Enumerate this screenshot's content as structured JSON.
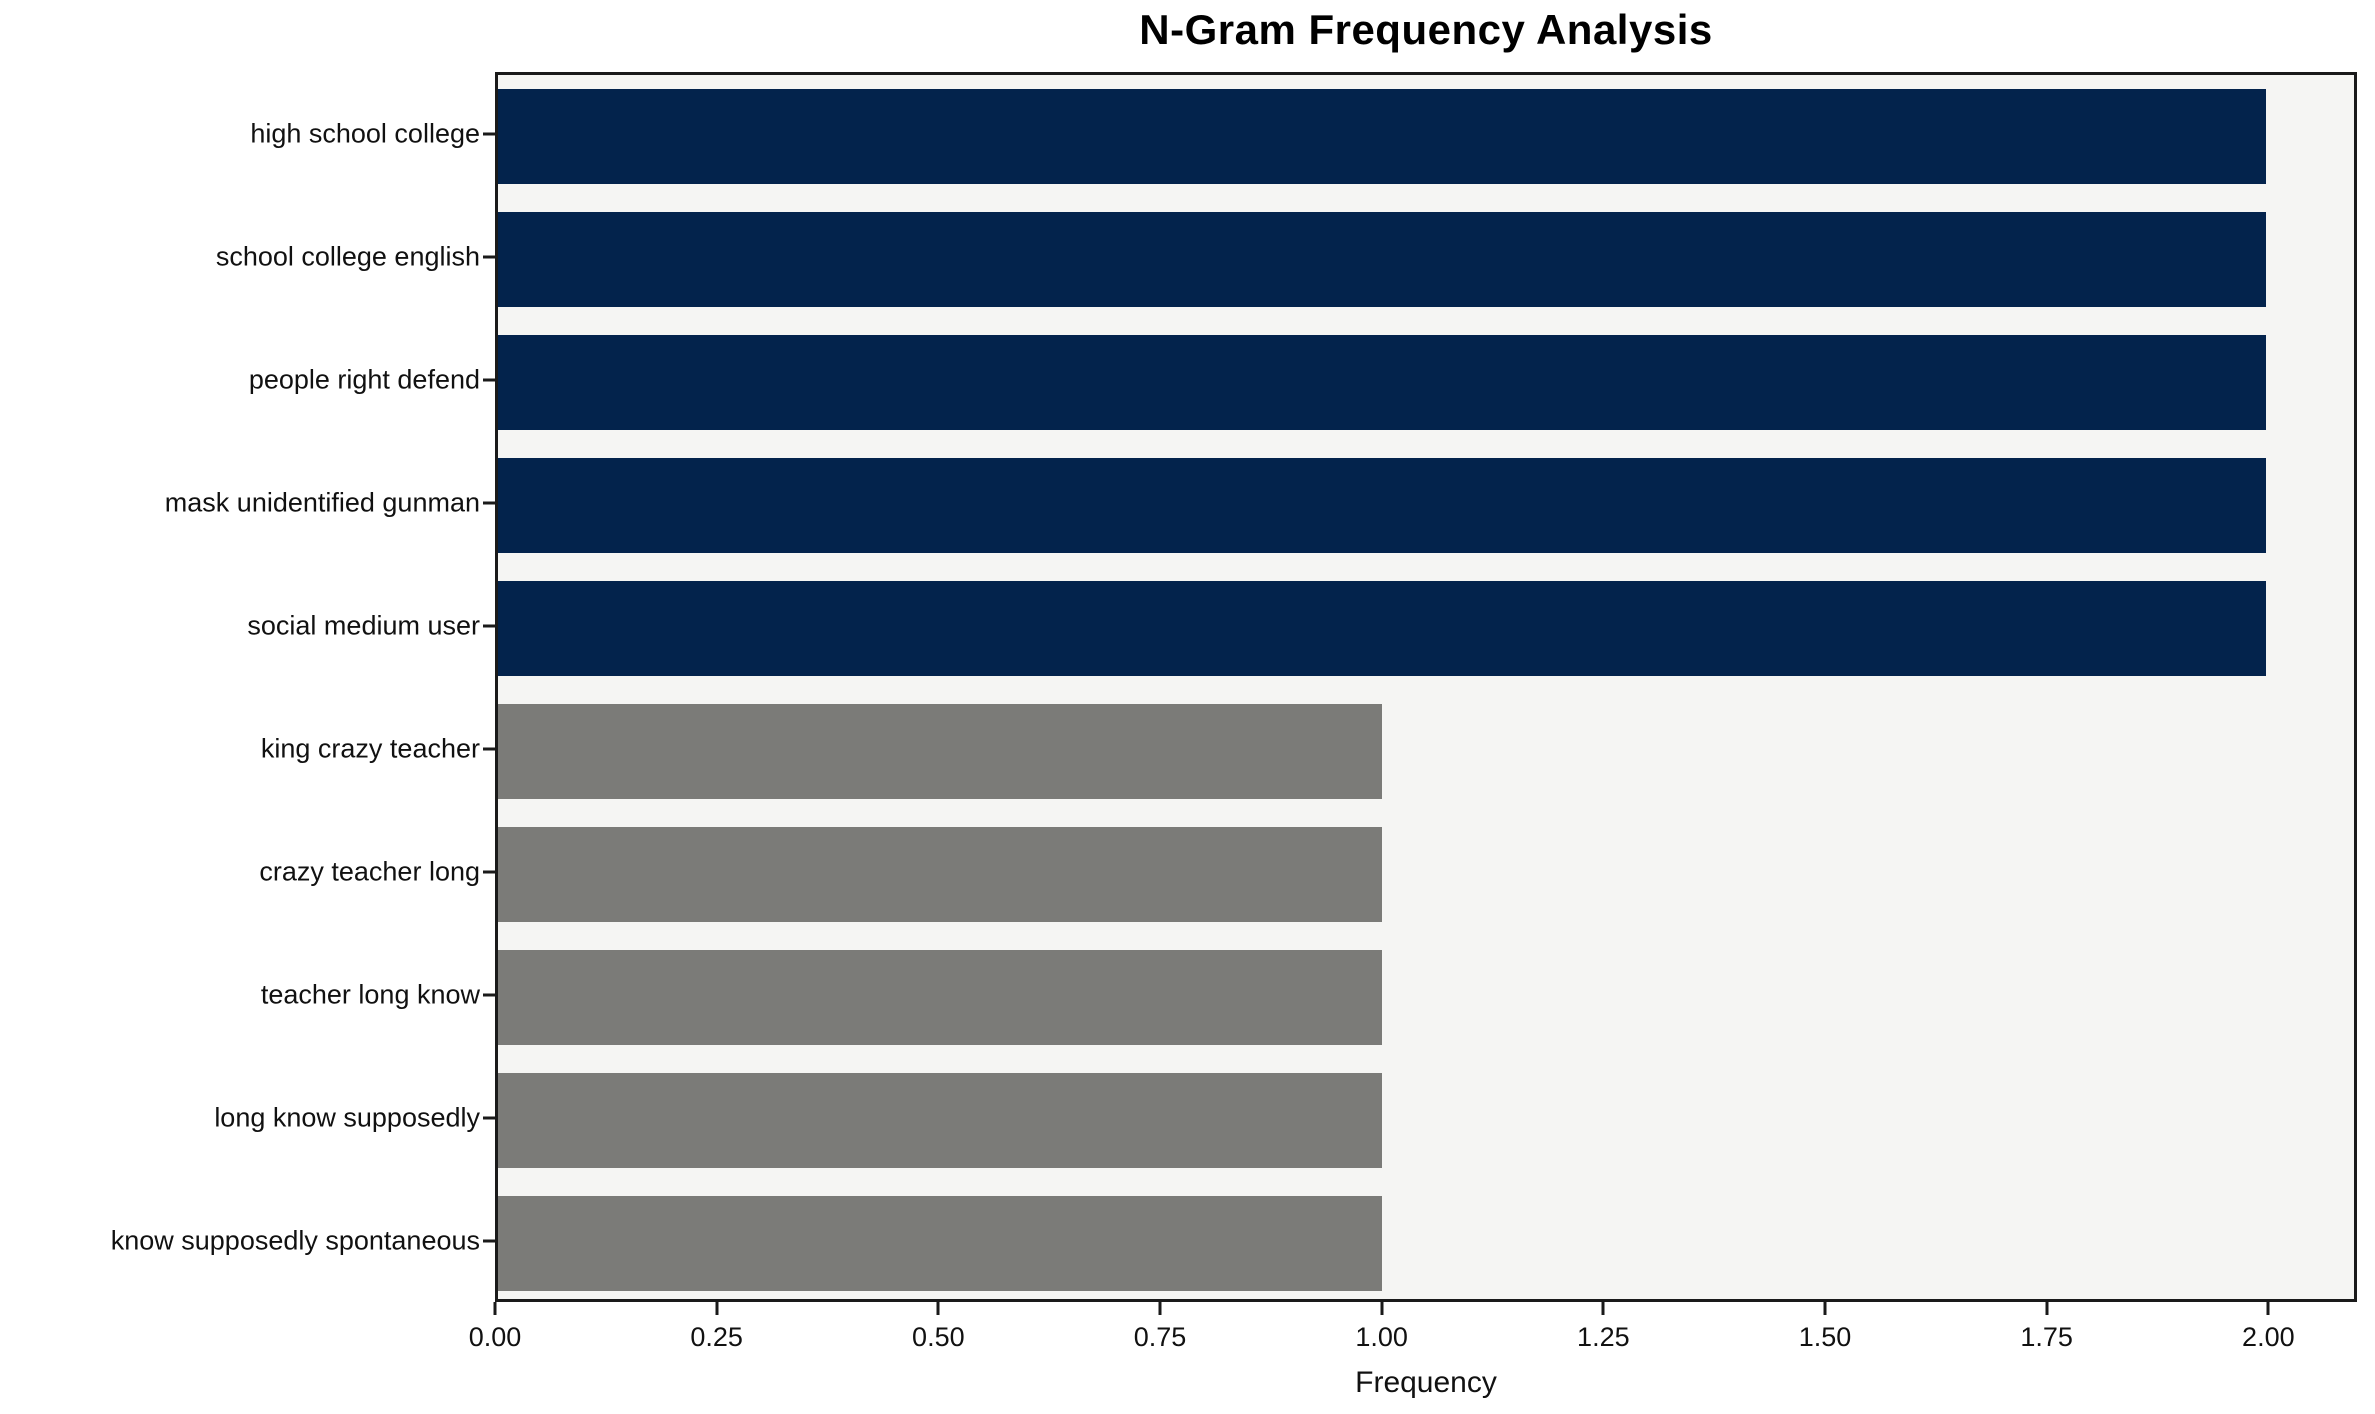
{
  "chart_data": {
    "type": "bar",
    "orientation": "horizontal",
    "title": "N-Gram Frequency Analysis",
    "xlabel": "Frequency",
    "ylabel": "",
    "categories": [
      "high school college",
      "school college english",
      "people right defend",
      "mask unidentified gunman",
      "social medium user",
      "king crazy teacher",
      "crazy teacher long",
      "teacher long know",
      "long know supposedly",
      "know supposedly spontaneous"
    ],
    "values": [
      2,
      2,
      2,
      2,
      2,
      1,
      1,
      1,
      1,
      1
    ],
    "bar_colors": [
      "#03234c",
      "#03234c",
      "#03234c",
      "#03234c",
      "#03234c",
      "#7b7b78",
      "#7b7b78",
      "#7b7b78",
      "#7b7b78",
      "#7b7b78"
    ],
    "xlim": [
      0,
      2.1
    ],
    "xticks": [
      {
        "value": 0.0,
        "label": "0.00"
      },
      {
        "value": 0.25,
        "label": "0.25"
      },
      {
        "value": 0.5,
        "label": "0.50"
      },
      {
        "value": 0.75,
        "label": "0.75"
      },
      {
        "value": 1.0,
        "label": "1.00"
      },
      {
        "value": 1.25,
        "label": "1.25"
      },
      {
        "value": 1.5,
        "label": "1.50"
      },
      {
        "value": 1.75,
        "label": "1.75"
      },
      {
        "value": 2.0,
        "label": "2.00"
      }
    ],
    "grid": false,
    "legend": "none",
    "colors": {
      "highlight_bar": "#03234c",
      "default_bar": "#7b7b78",
      "plot_background": "#f5f5f3",
      "figure_background": "#ffffff",
      "spine": "#1a1a1a"
    }
  }
}
